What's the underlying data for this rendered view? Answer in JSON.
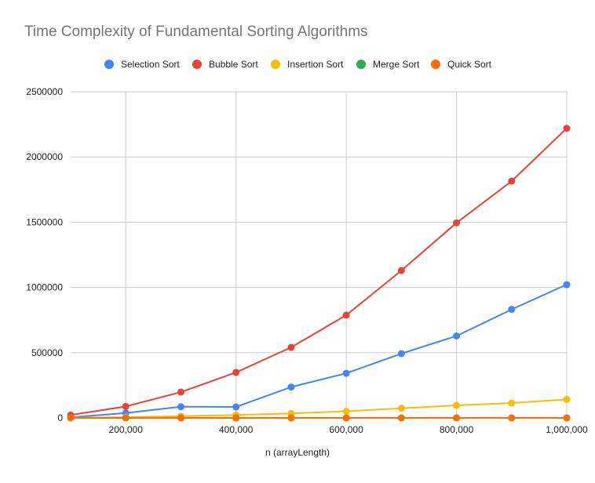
{
  "chart_data": {
    "type": "line",
    "title": "Time Complexity of Fundamental Sorting Algorithms",
    "xlabel": "n (arrayLength)",
    "ylabel": "",
    "x": [
      100000,
      200000,
      300000,
      400000,
      500000,
      600000,
      700000,
      800000,
      900000,
      1000000
    ],
    "xlim": [
      100000,
      1000000
    ],
    "ylim": [
      0,
      2500000
    ],
    "xticks": [
      200000,
      400000,
      600000,
      800000,
      1000000
    ],
    "xtick_labels": [
      "200,000",
      "400,000",
      "600,000",
      "800,000",
      "1,000,000"
    ],
    "yticks": [
      0,
      500000,
      1000000,
      1500000,
      2000000,
      2500000
    ],
    "ytick_labels": [
      "0",
      "500000",
      "1000000",
      "1500000",
      "2000000",
      "2500000"
    ],
    "grid": true,
    "legend_position": "top",
    "series": [
      {
        "name": "Selection Sort",
        "color": "#4285F4",
        "values": [
          4000,
          38000,
          86000,
          84000,
          237000,
          342000,
          493000,
          628000,
          832000,
          1022000
        ]
      },
      {
        "name": "Bubble Sort",
        "color": "#EA4335",
        "values": [
          22000,
          88000,
          198000,
          349000,
          541000,
          788000,
          1130000,
          1495000,
          1815000,
          2220000
        ]
      },
      {
        "name": "Insertion Sort",
        "color": "#FBBC04",
        "values": [
          1000,
          6000,
          13000,
          22000,
          34000,
          51000,
          74000,
          96000,
          114000,
          142000
        ]
      },
      {
        "name": "Merge Sort",
        "color": "#34A853",
        "values": [
          20,
          40,
          60,
          80,
          100,
          120,
          140,
          160,
          180,
          200
        ]
      },
      {
        "name": "Quick Sort",
        "color": "#FF6D01",
        "values": [
          10,
          20,
          30,
          40,
          50,
          60,
          70,
          80,
          90,
          100
        ]
      }
    ]
  }
}
